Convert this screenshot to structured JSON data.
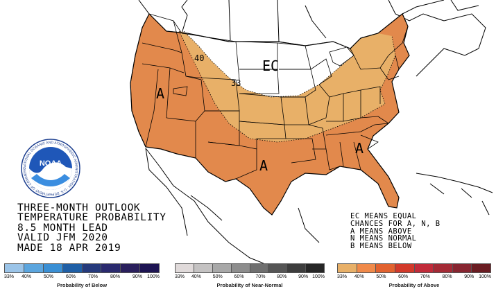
{
  "info_lines": [
    "THREE-MONTH OUTLOOK",
    "TEMPERATURE PROBABILITY",
    "8.5 MONTH LEAD",
    "VALID JFM 2020",
    "MADE 18 APR 2019"
  ],
  "key_lines": [
    "EC MEANS EQUAL",
    "CHANCES FOR A, N, B",
    "A MEANS ABOVE",
    "N MEANS NORMAL",
    "B MEANS BELOW"
  ],
  "map_labels": {
    "ec": "EC",
    "above_west": "A",
    "above_south": "A",
    "above_southeast": "A",
    "contour_40": "40",
    "contour_33": "33"
  },
  "logo": {
    "name": "NOAA",
    "ring_text": "NATIONAL OCEANIC AND ATMOSPHERIC ADMINISTRATION · U.S. DEPARTMENT OF COMMERCE"
  },
  "legends": [
    {
      "title": "Probability of Below",
      "ticks": [
        "33%",
        "40%",
        "50%",
        "60%",
        "70%",
        "80%",
        "90%",
        "100%"
      ],
      "colors": [
        "#9bc4e8",
        "#5ba5de",
        "#3a8fd4",
        "#1f5fa6",
        "#253a7c",
        "#2a2a6e",
        "#2a1f5c",
        "#1d1452"
      ]
    },
    {
      "title": "Probability of Near-Normal",
      "ticks": [
        "33%",
        "40%",
        "50%",
        "60%",
        "70%",
        "80%",
        "90%",
        "100%"
      ],
      "colors": [
        "#e0dada",
        "#c4c2c2",
        "#a8a8a8",
        "#8d8d8d",
        "#6f6f6f",
        "#555555",
        "#3d3d3d",
        "#262626"
      ]
    },
    {
      "title": "Probability of Above",
      "ticks": [
        "33%",
        "40%",
        "50%",
        "60%",
        "70%",
        "80%",
        "90%",
        "100%"
      ],
      "colors": [
        "#e8b068",
        "#f08a4a",
        "#e2622f",
        "#d2392a",
        "#c12b3a",
        "#a42a35",
        "#872530",
        "#6a1c22"
      ]
    }
  ],
  "colors": {
    "above_33_40": "#e8b068",
    "above_40_50": "#e2894c",
    "ec": "#ffffff"
  }
}
